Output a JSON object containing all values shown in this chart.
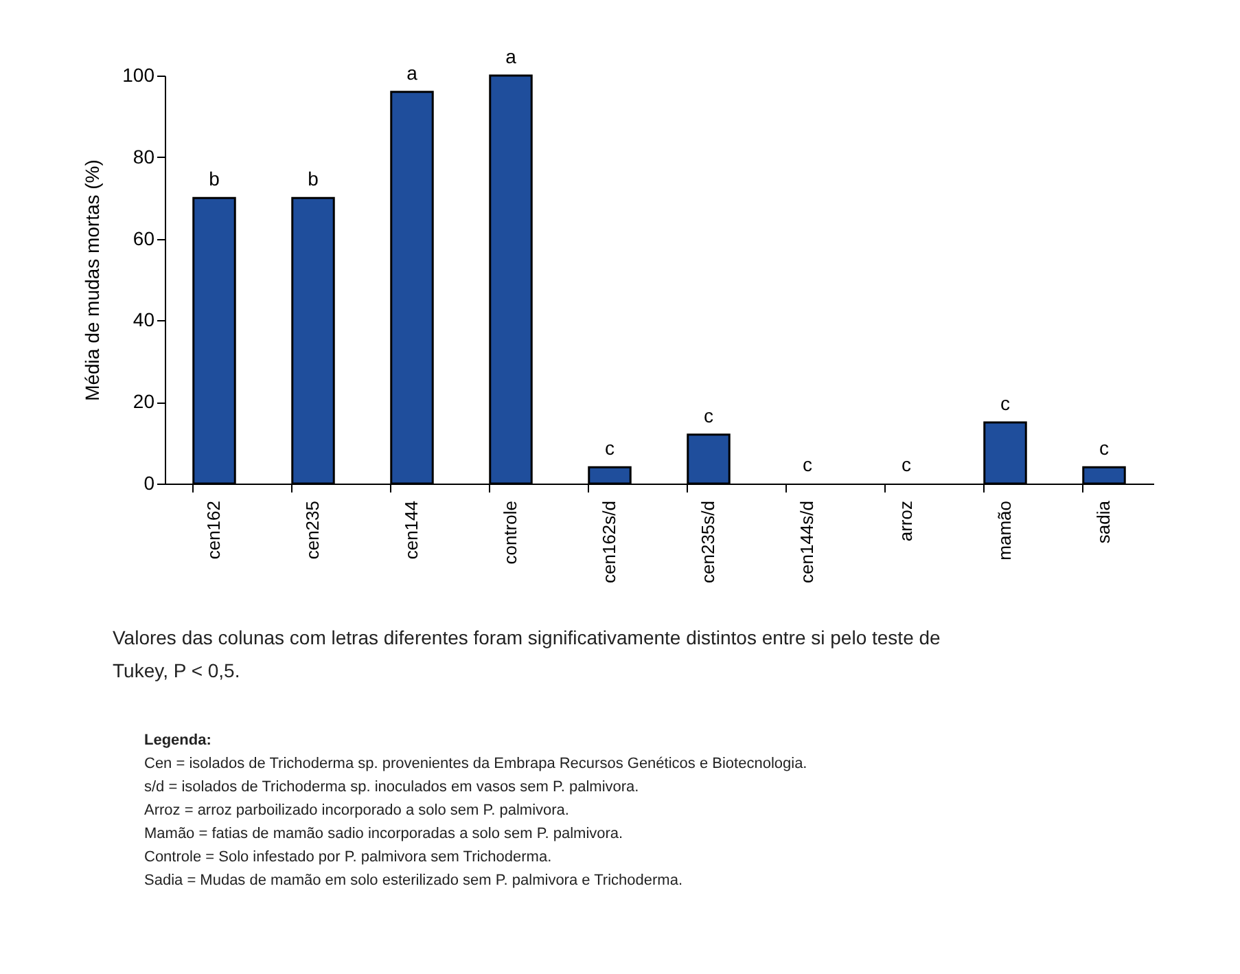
{
  "chart_data": {
    "type": "bar",
    "ylabel": "Média de mudas mortas (%)",
    "categories": [
      "cen162",
      "cen235",
      "cen144",
      "controle",
      "cen162s/d",
      "cen235s/d",
      "cen144s/d",
      "arroz",
      "mamão",
      "sadia"
    ],
    "values": [
      70,
      70,
      96,
      100,
      4,
      12,
      0,
      0,
      15,
      4
    ],
    "color": "#1f4e9c",
    "ylim": [
      0,
      100
    ],
    "yticks": [
      0,
      20,
      40,
      60,
      80,
      100
    ],
    "grid": false,
    "annotations": [
      {
        "text": "b",
        "x": "cen162",
        "y": 70
      },
      {
        "text": "b",
        "x": "cen235",
        "y": 70
      },
      {
        "text": "a",
        "x": "cen144",
        "y": 96
      },
      {
        "text": "a",
        "x": "controle",
        "y": 100
      },
      {
        "text": "c",
        "x": "cen162s/d",
        "y": 4
      },
      {
        "text": "c",
        "x": "cen235s/d",
        "y": 12
      },
      {
        "text": "c",
        "x": "cen144s/d",
        "y": 0
      },
      {
        "text": "c",
        "x": "arroz",
        "y": 0
      },
      {
        "text": "c",
        "x": "mamão",
        "y": 15
      },
      {
        "text": "c",
        "x": "sadia",
        "y": 4
      },
      "Valores das colunas com letras diferentes foram significativamente distintos entre si pelo teste de Tukey, P < 0,5.",
      "Legenda:",
      "Cen = isolados de Trichoderma sp. provenientes da Embrapa Recursos Genéticos e Biotecnologia.",
      "s/d = isolados de Trichoderma sp. inoculados em vasos sem P. palmivora.",
      "Arroz = arroz parboilizado incorporado a solo sem P. palmivora.",
      "Mamão = fatias de mamão sadio incorporadas a solo sem P. palmivora.",
      "Controle = Solo infestado por P. palmivora sem Trichoderma.",
      "Sadia = Mudas de mamão em solo esterilizado sem P. palmivora e Trichoderma."
    ]
  }
}
